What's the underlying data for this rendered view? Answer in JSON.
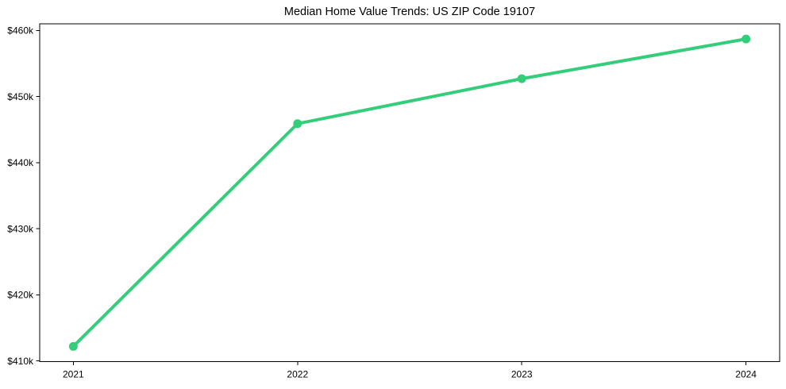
{
  "chart_data": {
    "type": "line",
    "title": "Median Home Value Trends: US ZIP Code 19107",
    "xlabel": "",
    "ylabel": "",
    "x": [
      2021,
      2022,
      2023,
      2024
    ],
    "x_tick_labels": [
      "2021",
      "2022",
      "2023",
      "2024"
    ],
    "series": [
      {
        "name": "median_home_value",
        "values": [
          412200,
          445900,
          452700,
          458700
        ]
      }
    ],
    "y_ticks": [
      410000,
      420000,
      430000,
      440000,
      450000,
      460000
    ],
    "y_tick_labels": [
      "$410k",
      "$420k",
      "$430k",
      "$440k",
      "$450k",
      "$460k"
    ],
    "xlim": [
      2020.85,
      2024.15
    ],
    "ylim": [
      409900,
      461000
    ],
    "grid": false,
    "legend": "none",
    "line_color": "#34ce7b",
    "marker": "circle",
    "line_width": 4,
    "marker_radius": 5.5,
    "axis_color": "#000000",
    "text_color": "#000000",
    "background": "#ffffff"
  }
}
